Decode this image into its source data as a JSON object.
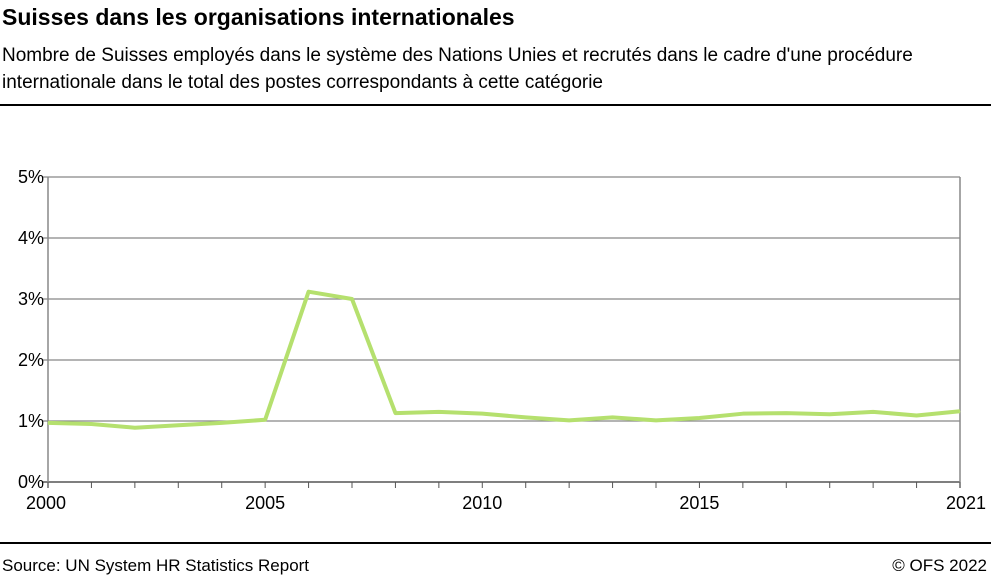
{
  "header": {
    "title": "Suisses dans les organisations internationales",
    "subtitle": "Nombre de Suisses employés dans le système des Nations Unies et recrutés dans le cadre d'une procédure internationale dans le total des postes correspondants à cette catégorie"
  },
  "footer": {
    "source": "Source: UN System HR Statistics Report",
    "copyright": "© OFS 2022"
  },
  "chart_data": {
    "type": "line",
    "x": [
      2000,
      2001,
      2002,
      2003,
      2004,
      2005,
      2006,
      2007,
      2008,
      2009,
      2010,
      2011,
      2012,
      2013,
      2014,
      2015,
      2016,
      2017,
      2018,
      2019,
      2020,
      2021
    ],
    "series": [
      {
        "values": [
          0.97,
          0.95,
          0.89,
          0.93,
          0.97,
          1.02,
          3.12,
          3.0,
          1.13,
          1.15,
          1.12,
          1.06,
          1.01,
          1.06,
          1.01,
          1.05,
          1.12,
          1.13,
          1.11,
          1.15,
          1.09,
          1.16
        ],
        "color": "#b5e06e"
      }
    ],
    "xlim": [
      2000,
      2021
    ],
    "ylim": [
      0,
      5
    ],
    "x_ticks": [
      "2000",
      "2005",
      "2010",
      "2015",
      "2021"
    ],
    "y_ticks": [
      "0%",
      "1%",
      "2%",
      "3%",
      "4%",
      "5%"
    ],
    "grid": true
  }
}
